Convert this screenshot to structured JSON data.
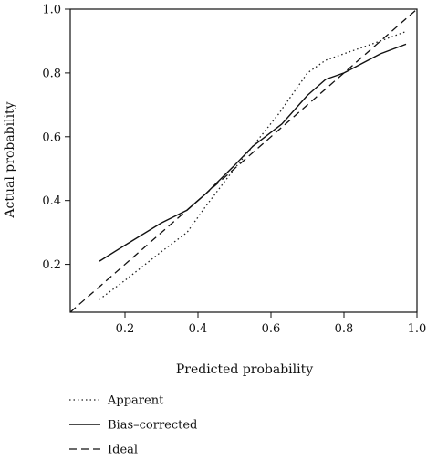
{
  "chart_data": {
    "type": "line",
    "title": "",
    "xlabel": "Predicted probability",
    "ylabel": "Actual probability",
    "xlim": [
      0.05,
      1.0
    ],
    "ylim": [
      0.05,
      1.0
    ],
    "grid": false,
    "legend_position": "bottom-left",
    "x_ticks": [
      0.2,
      0.4,
      0.6,
      0.8,
      1.0
    ],
    "x_tick_labels": [
      "0.2",
      "0.4",
      "0.6",
      "0.8",
      "1.0"
    ],
    "y_ticks": [
      0.2,
      0.4,
      0.6,
      0.8,
      1.0
    ],
    "y_tick_labels": [
      "0.2",
      "0.4",
      "0.6",
      "0.8",
      "1.0"
    ],
    "series": [
      {
        "name": "Apparent",
        "style": "dotted",
        "color": "#222222",
        "x": [
          0.13,
          0.2,
          0.3,
          0.37,
          0.42,
          0.5,
          0.55,
          0.62,
          0.7,
          0.75,
          0.85,
          0.9,
          0.97
        ],
        "y": [
          0.09,
          0.15,
          0.24,
          0.3,
          0.38,
          0.5,
          0.57,
          0.67,
          0.8,
          0.84,
          0.88,
          0.9,
          0.93
        ]
      },
      {
        "name": "Bias–corrected",
        "style": "solid",
        "color": "#111111",
        "x": [
          0.13,
          0.2,
          0.3,
          0.37,
          0.42,
          0.5,
          0.55,
          0.63,
          0.7,
          0.75,
          0.8,
          0.85,
          0.9,
          0.97
        ],
        "y": [
          0.21,
          0.26,
          0.33,
          0.37,
          0.42,
          0.51,
          0.57,
          0.64,
          0.73,
          0.78,
          0.8,
          0.83,
          0.86,
          0.89
        ]
      },
      {
        "name": "Ideal",
        "style": "dashed",
        "color": "#111111",
        "x": [
          0.05,
          1.0
        ],
        "y": [
          0.05,
          1.0
        ]
      }
    ]
  }
}
